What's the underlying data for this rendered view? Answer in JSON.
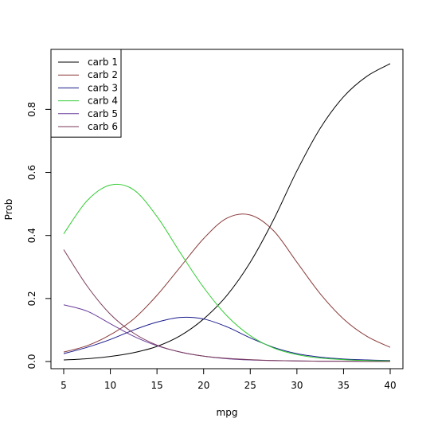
{
  "chart_data": {
    "type": "line",
    "title": "",
    "xlabel": "mpg",
    "ylabel": "Prob",
    "xlim": [
      5,
      40
    ],
    "ylim": [
      0,
      0.95
    ],
    "xticks": [
      5,
      10,
      15,
      20,
      25,
      30,
      35,
      40
    ],
    "yticks": [
      0.0,
      0.2,
      0.4,
      0.6,
      0.8
    ],
    "ytick_labels": [
      "0.0",
      "0.2",
      "0.4",
      "0.6",
      "0.8"
    ],
    "legend_position": "top-left",
    "grid": false,
    "x": [
      5,
      7.5,
      10,
      12.5,
      15,
      17.5,
      20,
      22.5,
      25,
      27.5,
      30,
      32.5,
      35,
      37.5,
      40
    ],
    "series": [
      {
        "name": "carb 1",
        "color": "#000000",
        "values": [
          0.005,
          0.009,
          0.016,
          0.028,
          0.048,
          0.082,
          0.135,
          0.21,
          0.315,
          0.45,
          0.605,
          0.74,
          0.84,
          0.905,
          0.945
        ]
      },
      {
        "name": "carb 2",
        "color": "#8b3a3a",
        "values": [
          0.03,
          0.05,
          0.085,
          0.135,
          0.21,
          0.3,
          0.39,
          0.455,
          0.465,
          0.415,
          0.315,
          0.215,
          0.135,
          0.08,
          0.045
        ]
      },
      {
        "name": "carb 3",
        "color": "#1a1a8c",
        "values": [
          0.025,
          0.045,
          0.07,
          0.1,
          0.125,
          0.14,
          0.135,
          0.11,
          0.075,
          0.045,
          0.025,
          0.014,
          0.008,
          0.005,
          0.003
        ]
      },
      {
        "name": "carb 4",
        "color": "#33cc33",
        "values": [
          0.405,
          0.51,
          0.56,
          0.545,
          0.46,
          0.345,
          0.235,
          0.145,
          0.082,
          0.043,
          0.022,
          0.011,
          0.006,
          0.003,
          0.002
        ]
      },
      {
        "name": "carb 5",
        "color": "#6a3d9a",
        "values": [
          0.18,
          0.16,
          0.12,
          0.08,
          0.05,
          0.03,
          0.017,
          0.009,
          0.005,
          0.003,
          0.002,
          0.001,
          0.001,
          0.0,
          0.0
        ]
      },
      {
        "name": "carb 6",
        "color": "#7a3a5a",
        "values": [
          0.355,
          0.24,
          0.15,
          0.09,
          0.052,
          0.03,
          0.017,
          0.01,
          0.006,
          0.003,
          0.002,
          0.001,
          0.001,
          0.0,
          0.0
        ]
      }
    ]
  }
}
